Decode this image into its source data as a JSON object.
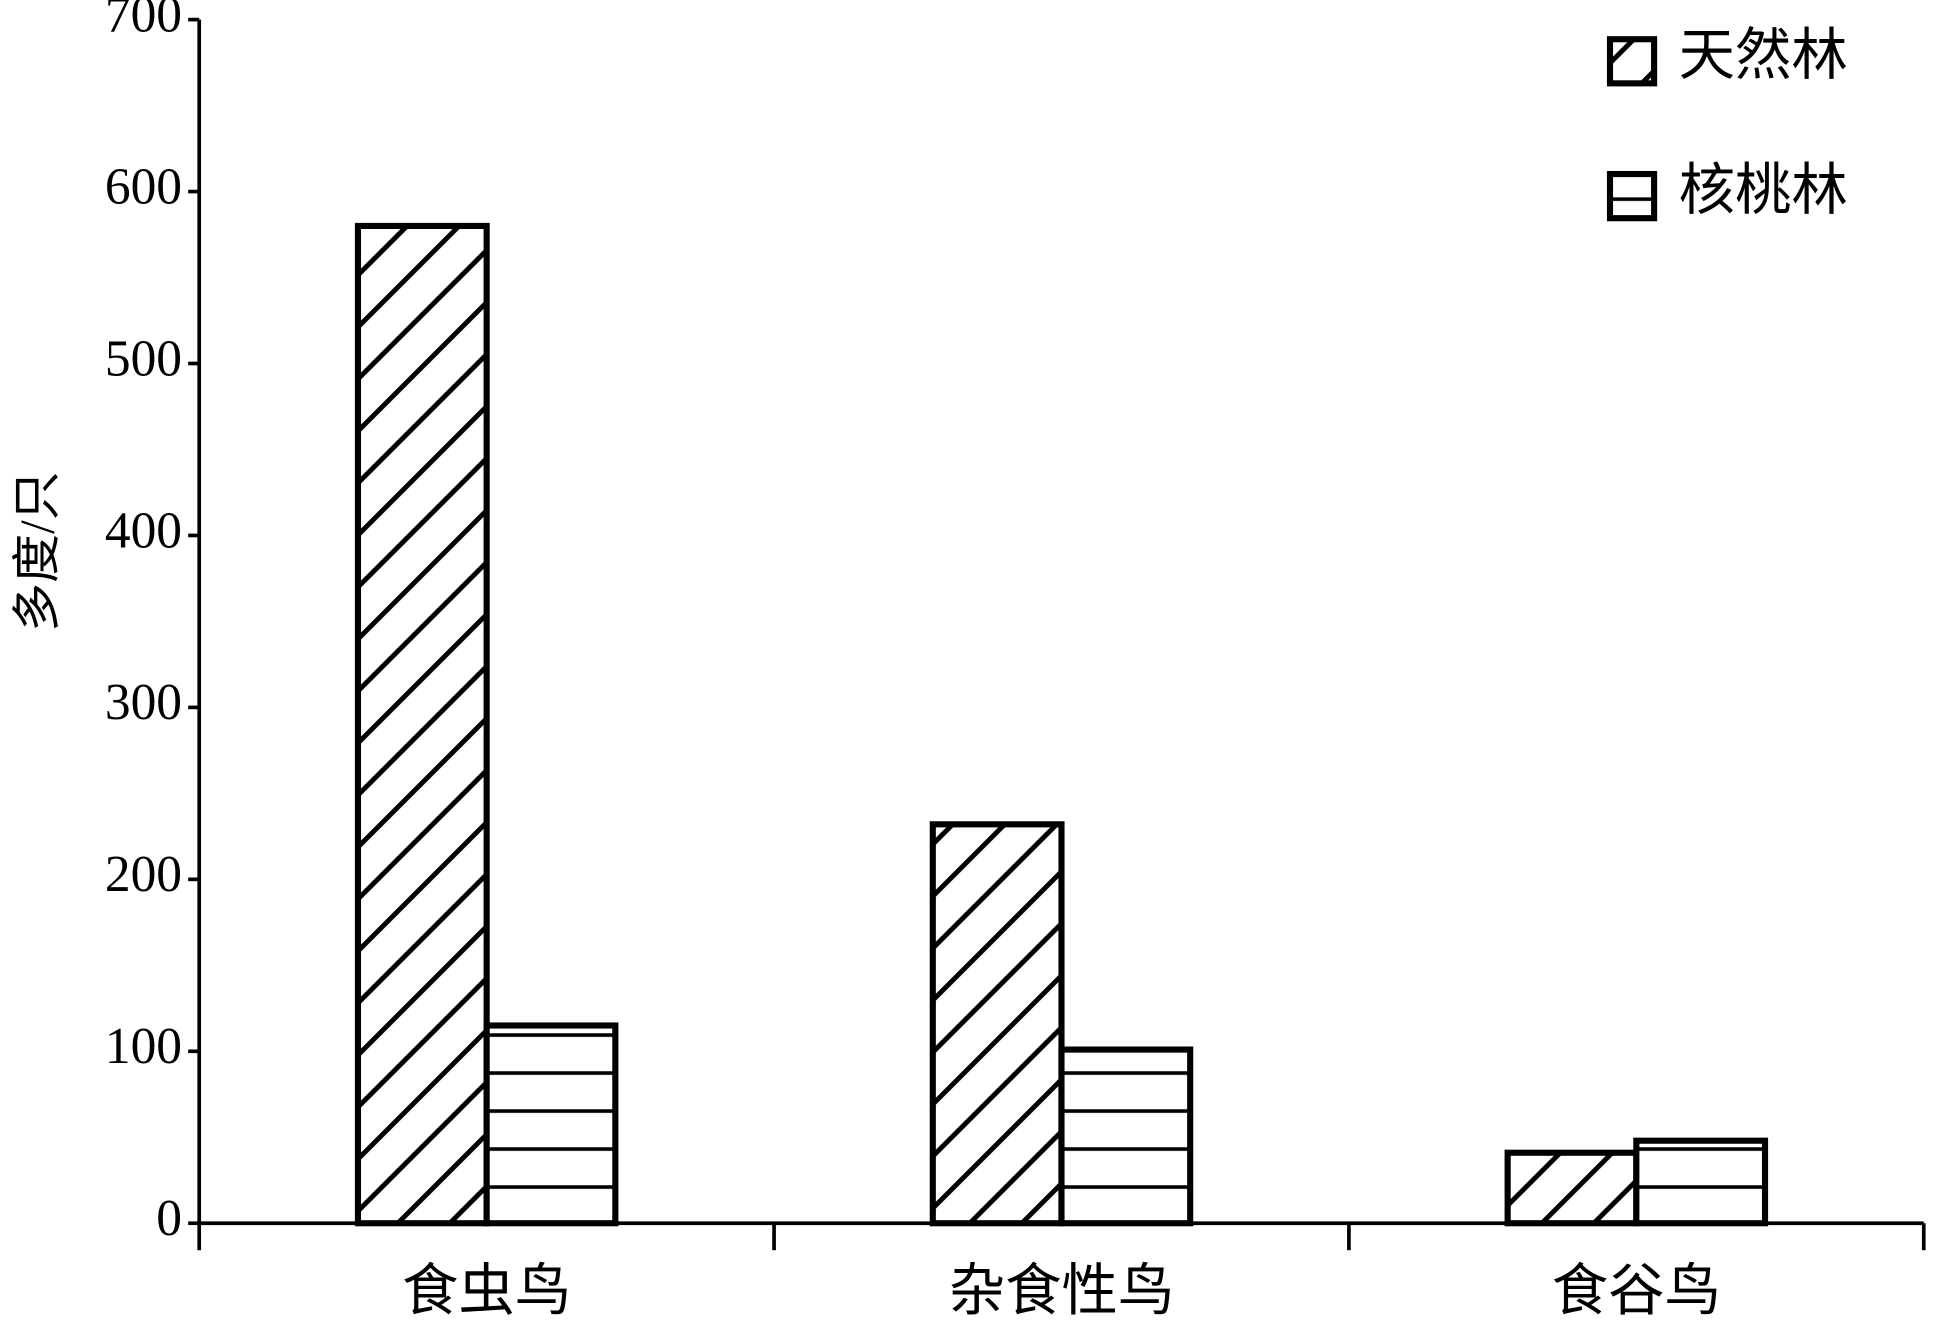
{
  "chart_data": {
    "type": "bar",
    "ylabel": "多度/只",
    "categories": [
      "食虫鸟",
      "杂食性鸟",
      "食谷鸟"
    ],
    "series": [
      {
        "name": "天然林",
        "color": "#000000",
        "hatch": "diagonal",
        "values": [
          580,
          232,
          41
        ]
      },
      {
        "name": "核桃林",
        "color": "#000000",
        "hatch": "horizontal",
        "values": [
          115,
          101,
          48
        ]
      }
    ],
    "ylim": [
      0,
      700
    ],
    "yticks": [
      0,
      100,
      200,
      300,
      400,
      500,
      600,
      700
    ],
    "legend": "upper right"
  }
}
